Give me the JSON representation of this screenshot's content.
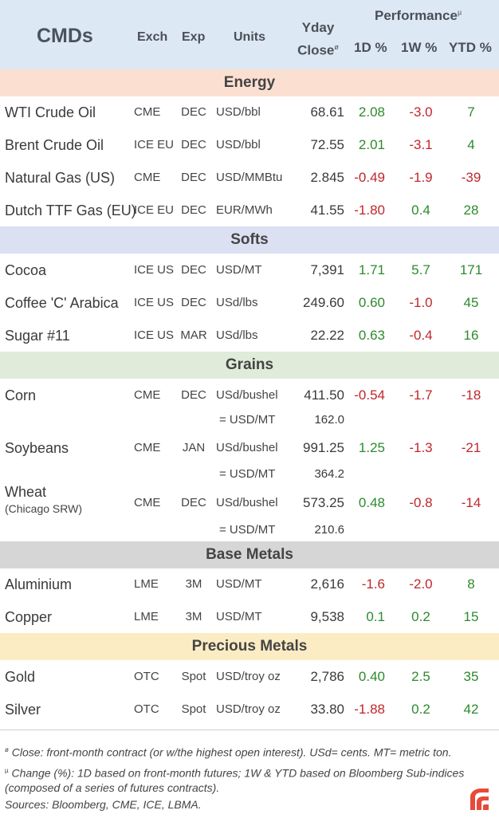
{
  "header": {
    "title": "CMDs",
    "exch": "Exch",
    "exp": "Exp",
    "units": "Units",
    "yday_line1": "Yday",
    "yday_line2": "Close",
    "yday_mark": "ø",
    "performance": "Performance",
    "performance_mark": "µ",
    "d1": "1D %",
    "w1": "1W %",
    "ytd": "YTD %"
  },
  "sections": {
    "energy": "Energy",
    "softs": "Softs",
    "grains": "Grains",
    "base": "Base Metals",
    "precious": "Precious Metals"
  },
  "energy": [
    {
      "name": "WTI Crude Oil",
      "exch": "CME",
      "exp": "DEC",
      "units": "USD/bbl",
      "close": "68.61",
      "d1": "2.08",
      "w1": "-3.0",
      "ytd": "7"
    },
    {
      "name": "Brent Crude Oil",
      "exch": "ICE EU",
      "exp": "DEC",
      "units": "USD/bbl",
      "close": "72.55",
      "d1": "2.01",
      "w1": "-3.1",
      "ytd": "4"
    },
    {
      "name": "Natural Gas (US)",
      "exch": "CME",
      "exp": "DEC",
      "units": "USD/MMBtu",
      "close": "2.845",
      "d1": "-0.49",
      "w1": "-1.9",
      "ytd": "-39"
    },
    {
      "name": "Dutch TTF Gas (EU)",
      "exch": "ICE EU",
      "exp": "DEC",
      "units": "EUR/MWh",
      "close": "41.55",
      "d1": "-1.80",
      "w1": "0.4",
      "ytd": "28"
    }
  ],
  "softs": [
    {
      "name": "Cocoa",
      "exch": "ICE US",
      "exp": "DEC",
      "units": "USD/MT",
      "close": "7,391",
      "d1": "1.71",
      "w1": "5.7",
      "ytd": "171"
    },
    {
      "name": "Coffee 'C' Arabica",
      "exch": "ICE US",
      "exp": "DEC",
      "units": "USd/lbs",
      "close": "249.60",
      "d1": "0.60",
      "w1": "-1.0",
      "ytd": "45"
    },
    {
      "name": "Sugar #11",
      "exch": "ICE US",
      "exp": "MAR",
      "units": "USd/lbs",
      "close": "22.22",
      "d1": "0.63",
      "w1": "-0.4",
      "ytd": "16"
    }
  ],
  "grains": [
    {
      "name": "Corn",
      "exch": "CME",
      "exp": "DEC",
      "units": "USd/bushel",
      "close": "411.50",
      "d1": "-0.54",
      "w1": "-1.7",
      "ytd": "-18",
      "conv_units": "= USD/MT",
      "conv_close": "162.0"
    },
    {
      "name": "Soybeans",
      "exch": "CME",
      "exp": "JAN",
      "units": "USd/bushel",
      "close": "991.25",
      "d1": "1.25",
      "w1": "-1.3",
      "ytd": "-21",
      "conv_units": "= USD/MT",
      "conv_close": "364.2"
    },
    {
      "name": "Wheat",
      "sub": "(Chicago SRW)",
      "exch": "CME",
      "exp": "DEC",
      "units": "USd/bushel",
      "close": "573.25",
      "d1": "0.48",
      "w1": "-0.8",
      "ytd": "-14",
      "conv_units": "= USD/MT",
      "conv_close": "210.6"
    }
  ],
  "base": [
    {
      "name": "Aluminium",
      "exch": "LME",
      "exp": "3M",
      "units": "USD/MT",
      "close": "2,616",
      "d1": "-1.6",
      "w1": "-2.0",
      "ytd": "8"
    },
    {
      "name": "Copper",
      "exch": "LME",
      "exp": "3M",
      "units": "USD/MT",
      "close": "9,538",
      "d1": "0.1",
      "w1": "0.2",
      "ytd": "15"
    }
  ],
  "precious": [
    {
      "name": "Gold",
      "exch": "OTC",
      "exp": "Spot",
      "units": "USD/troy oz",
      "close": "2,786",
      "d1": "0.40",
      "w1": "2.5",
      "ytd": "35"
    },
    {
      "name": "Silver",
      "exch": "OTC",
      "exp": "Spot",
      "units": "USD/troy oz",
      "close": "33.80",
      "d1": "-1.88",
      "w1": "0.2",
      "ytd": "42"
    }
  ],
  "footnotes": {
    "close_mark": "ø",
    "close_note": " Close: front-month contract (or w/the highest open interest). USd= cents. MT= metric ton.",
    "change_mark": "µ",
    "change_note_1": " Change (%): 1D based on front-month futures; 1W & YTD based on Bloomberg Sub-indices",
    "change_note_2": "(composed of a series of futures contracts).",
    "sources": "Sources: Bloomberg, CME, ICE, LBMA."
  },
  "colors": {
    "positive": "#2d8a2d",
    "negative": "#c0262b",
    "header_bg": "#dde8f5",
    "logo": "#e8493a"
  },
  "logo_icon": "brand-logo-icon"
}
